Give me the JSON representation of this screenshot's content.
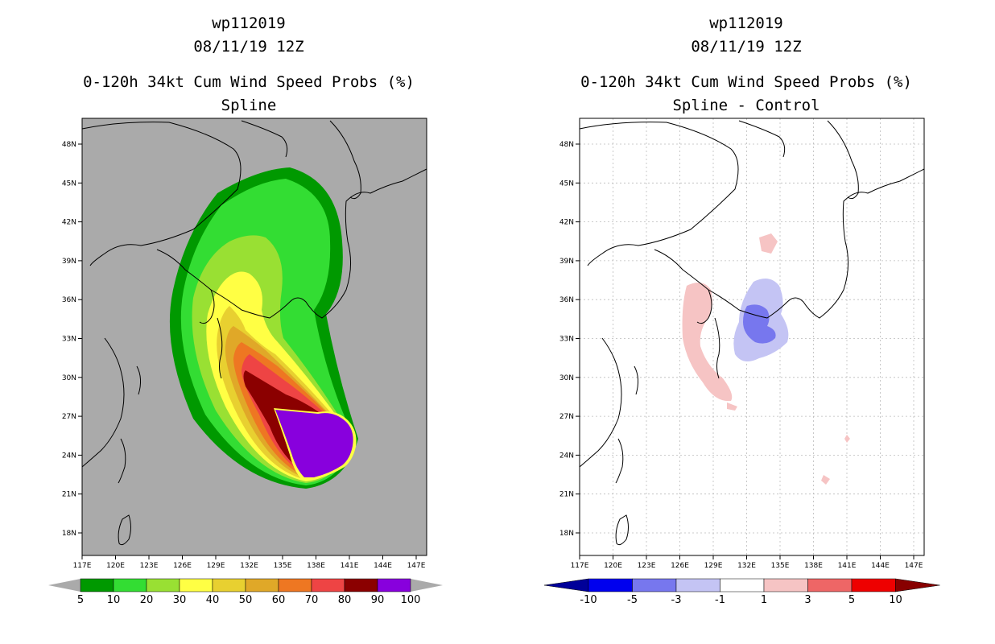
{
  "left": {
    "storm_id": "wp112019",
    "datetime": "08/11/19 12Z",
    "title": "0-120h 34kt Cum Wind Speed Probs (%)",
    "subtitle": "Spline",
    "lat_ticks": [
      "48N",
      "45N",
      "42N",
      "39N",
      "36N",
      "33N",
      "30N",
      "27N",
      "24N",
      "21N",
      "18N"
    ],
    "lon_ticks": [
      "117E",
      "120E",
      "123E",
      "126E",
      "129E",
      "132E",
      "135E",
      "138E",
      "141E",
      "144E",
      "147E"
    ],
    "colorbar": {
      "labels": [
        "5",
        "10",
        "20",
        "30",
        "40",
        "50",
        "60",
        "70",
        "80",
        "90",
        "100"
      ],
      "colors": [
        "#009900",
        "#33dd33",
        "#99e033",
        "#ffff44",
        "#e8d030",
        "#e0a828",
        "#ee7722",
        "#ee4444",
        "#8b0000",
        "#8800dd"
      ]
    }
  },
  "right": {
    "storm_id": "wp112019",
    "datetime": "08/11/19 12Z",
    "title": "0-120h 34kt Cum Wind Speed Probs (%)",
    "subtitle": "Spline - Control",
    "lat_ticks": [
      "48N",
      "45N",
      "42N",
      "39N",
      "36N",
      "33N",
      "30N",
      "27N",
      "24N",
      "21N",
      "18N"
    ],
    "lon_ticks": [
      "117E",
      "120E",
      "123E",
      "126E",
      "129E",
      "132E",
      "135E",
      "138E",
      "141E",
      "144E",
      "147E"
    ],
    "colorbar": {
      "labels": [
        "-10",
        "-5",
        "-3",
        "-1",
        "1",
        "3",
        "5",
        "10"
      ],
      "colors": [
        "#000099",
        "#0000ee",
        "#7777ee",
        "#c4c4f4",
        "#ffffff",
        "#f6c4c4",
        "#ee6666",
        "#ee0000",
        "#880000"
      ]
    }
  }
}
